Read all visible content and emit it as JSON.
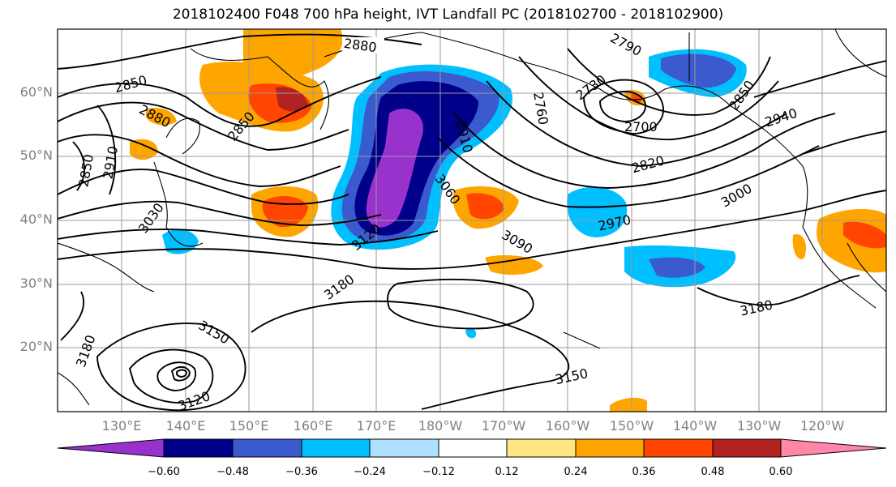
{
  "title": "2018102400 F048 700 hPa height, IVT Landfall PC (2018102700 - 2018102900)",
  "lat_labels": [
    "60°N",
    "50°N",
    "40°N",
    "30°N",
    "20°N"
  ],
  "lon_labels": [
    "130°E",
    "140°E",
    "150°E",
    "160°E",
    "170°E",
    "180°W",
    "170°W",
    "160°W",
    "150°W",
    "140°W",
    "130°W",
    "120°W"
  ],
  "colorbar": {
    "ticks": [
      "−0.60",
      "−0.48",
      "−0.36",
      "−0.24",
      "−0.12",
      "0.12",
      "0.24",
      "0.36",
      "0.48",
      "0.60"
    ],
    "colors": [
      "#9932cc",
      "#00008b",
      "#3a5acd",
      "#00bfff",
      "#b0e0ff",
      "#ffffff",
      "#ffe680",
      "#ffa500",
      "#ff4500",
      "#b22222",
      "#ff88aa"
    ]
  },
  "contour_labels": [
    "2880",
    "2850",
    "2880",
    "2850",
    "2910",
    "2850",
    "3030",
    "2790",
    "2730",
    "2760",
    "2700",
    "2850",
    "2940",
    "2820",
    "2910",
    "3060",
    "3000",
    "2970",
    "3090",
    "3120",
    "3180",
    "3180",
    "3150",
    "3180",
    "3150",
    "3120"
  ]
}
